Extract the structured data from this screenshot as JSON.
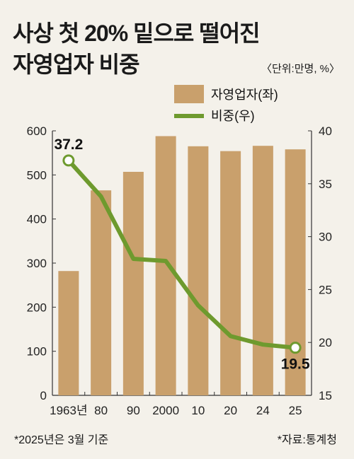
{
  "chart_data": {
    "type": "bar+line",
    "title": "사상 첫 20% 밑으로 떨어진 자영업자 비중",
    "title_lines": [
      "사상 첫 20% 밑으로 떨어진",
      "자영업자 비중"
    ],
    "unit_note": "〈단위:만명, %〉",
    "categories": [
      "1963년",
      "80",
      "90",
      "2000",
      "10",
      "20",
      "24",
      "25"
    ],
    "series": [
      {
        "name": "자영업자(좌)",
        "type": "bar",
        "axis": "left",
        "color": "#c9a06c",
        "values": [
          282,
          465,
          507,
          588,
          565,
          554,
          566,
          558
        ]
      },
      {
        "name": "비중(우)",
        "type": "line",
        "axis": "right",
        "color": "#6e9a2e",
        "values": [
          37.2,
          33.8,
          27.9,
          27.7,
          23.5,
          20.6,
          19.8,
          19.5
        ]
      }
    ],
    "annotations": [
      {
        "series": 1,
        "index": 0,
        "label": "37.2"
      },
      {
        "series": 1,
        "index": 7,
        "label": "19.5"
      }
    ],
    "y_left": {
      "min": 0,
      "max": 600,
      "ticks": [
        "0",
        "100",
        "200",
        "300",
        "400",
        "500",
        "600"
      ]
    },
    "y_right": {
      "min": 15,
      "max": 40,
      "ticks": [
        "15",
        "20",
        "25",
        "30",
        "35",
        "40"
      ]
    },
    "legend_position": "top-right",
    "grid": false
  },
  "footer": {
    "note": "*2025년은 3월 기준",
    "source": "*자료:통계청"
  }
}
